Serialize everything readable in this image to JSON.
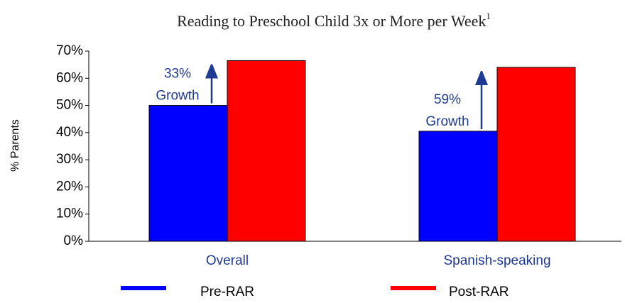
{
  "chart_data": {
    "type": "bar",
    "title": "Reading to Preschool Child 3x or More per Week",
    "title_footnote": "1",
    "y_label": "% Parents",
    "categories": [
      "Overall",
      "Spanish-speaking"
    ],
    "series": [
      {
        "name": "Pre-RAR",
        "color": "#0000ff",
        "values": [
          50,
          40.5
        ]
      },
      {
        "name": "Post-RAR",
        "color": "#ff0000",
        "values": [
          66.5,
          64
        ]
      }
    ],
    "ylim": [
      0,
      70
    ],
    "yticks": [
      {
        "value": 0,
        "label": "0%"
      },
      {
        "value": 10,
        "label": "10%"
      },
      {
        "value": 20,
        "label": "20%"
      },
      {
        "value": 30,
        "label": "30%"
      },
      {
        "value": 40,
        "label": "40%"
      },
      {
        "value": 50,
        "label": "50%"
      },
      {
        "value": 60,
        "label": "60%"
      },
      {
        "value": 70,
        "label": "70%"
      }
    ],
    "annotations": [
      {
        "lines": [
          "33%",
          "Growth"
        ]
      },
      {
        "lines": [
          "59%",
          "Growth"
        ]
      }
    ]
  }
}
